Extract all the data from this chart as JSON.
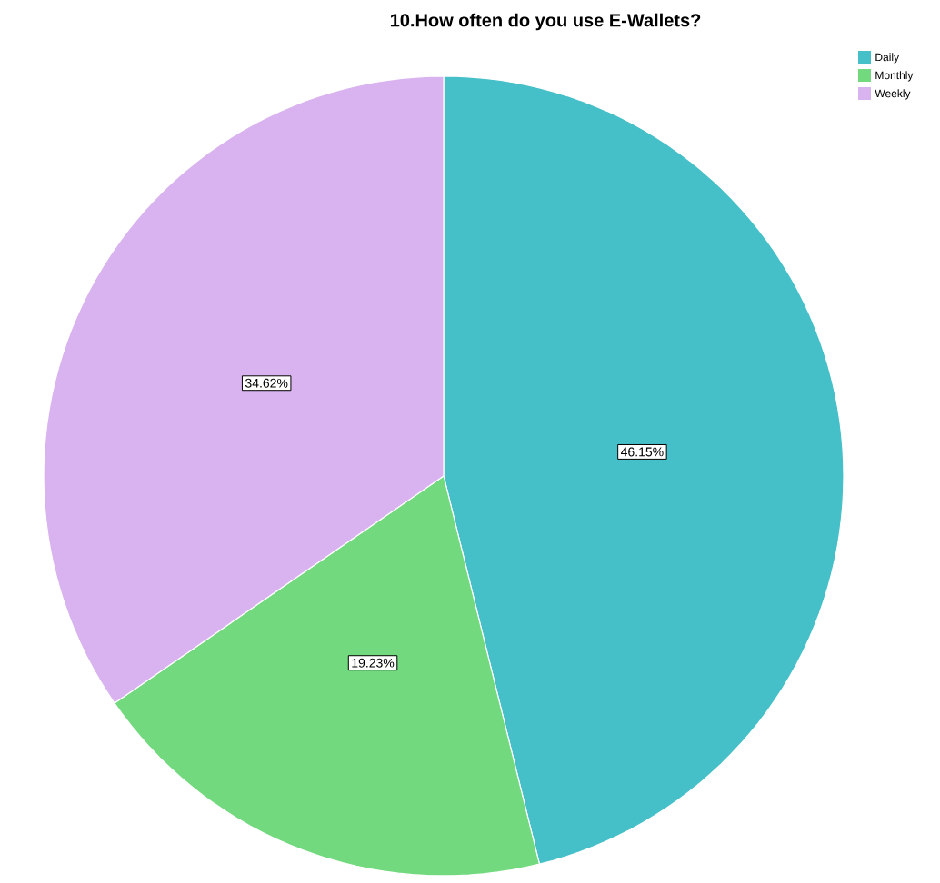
{
  "chart_data": {
    "type": "pie",
    "title": "10.How often do you use E-Wallets?",
    "categories": [
      "Daily",
      "Monthly",
      "Weekly"
    ],
    "values": [
      46.15,
      19.23,
      34.62
    ],
    "colors": [
      "#45bfc8",
      "#72d97e",
      "#d9b3ef"
    ],
    "value_labels": [
      "46.15%",
      "19.23%",
      "34.62%"
    ],
    "legend": "top right"
  }
}
